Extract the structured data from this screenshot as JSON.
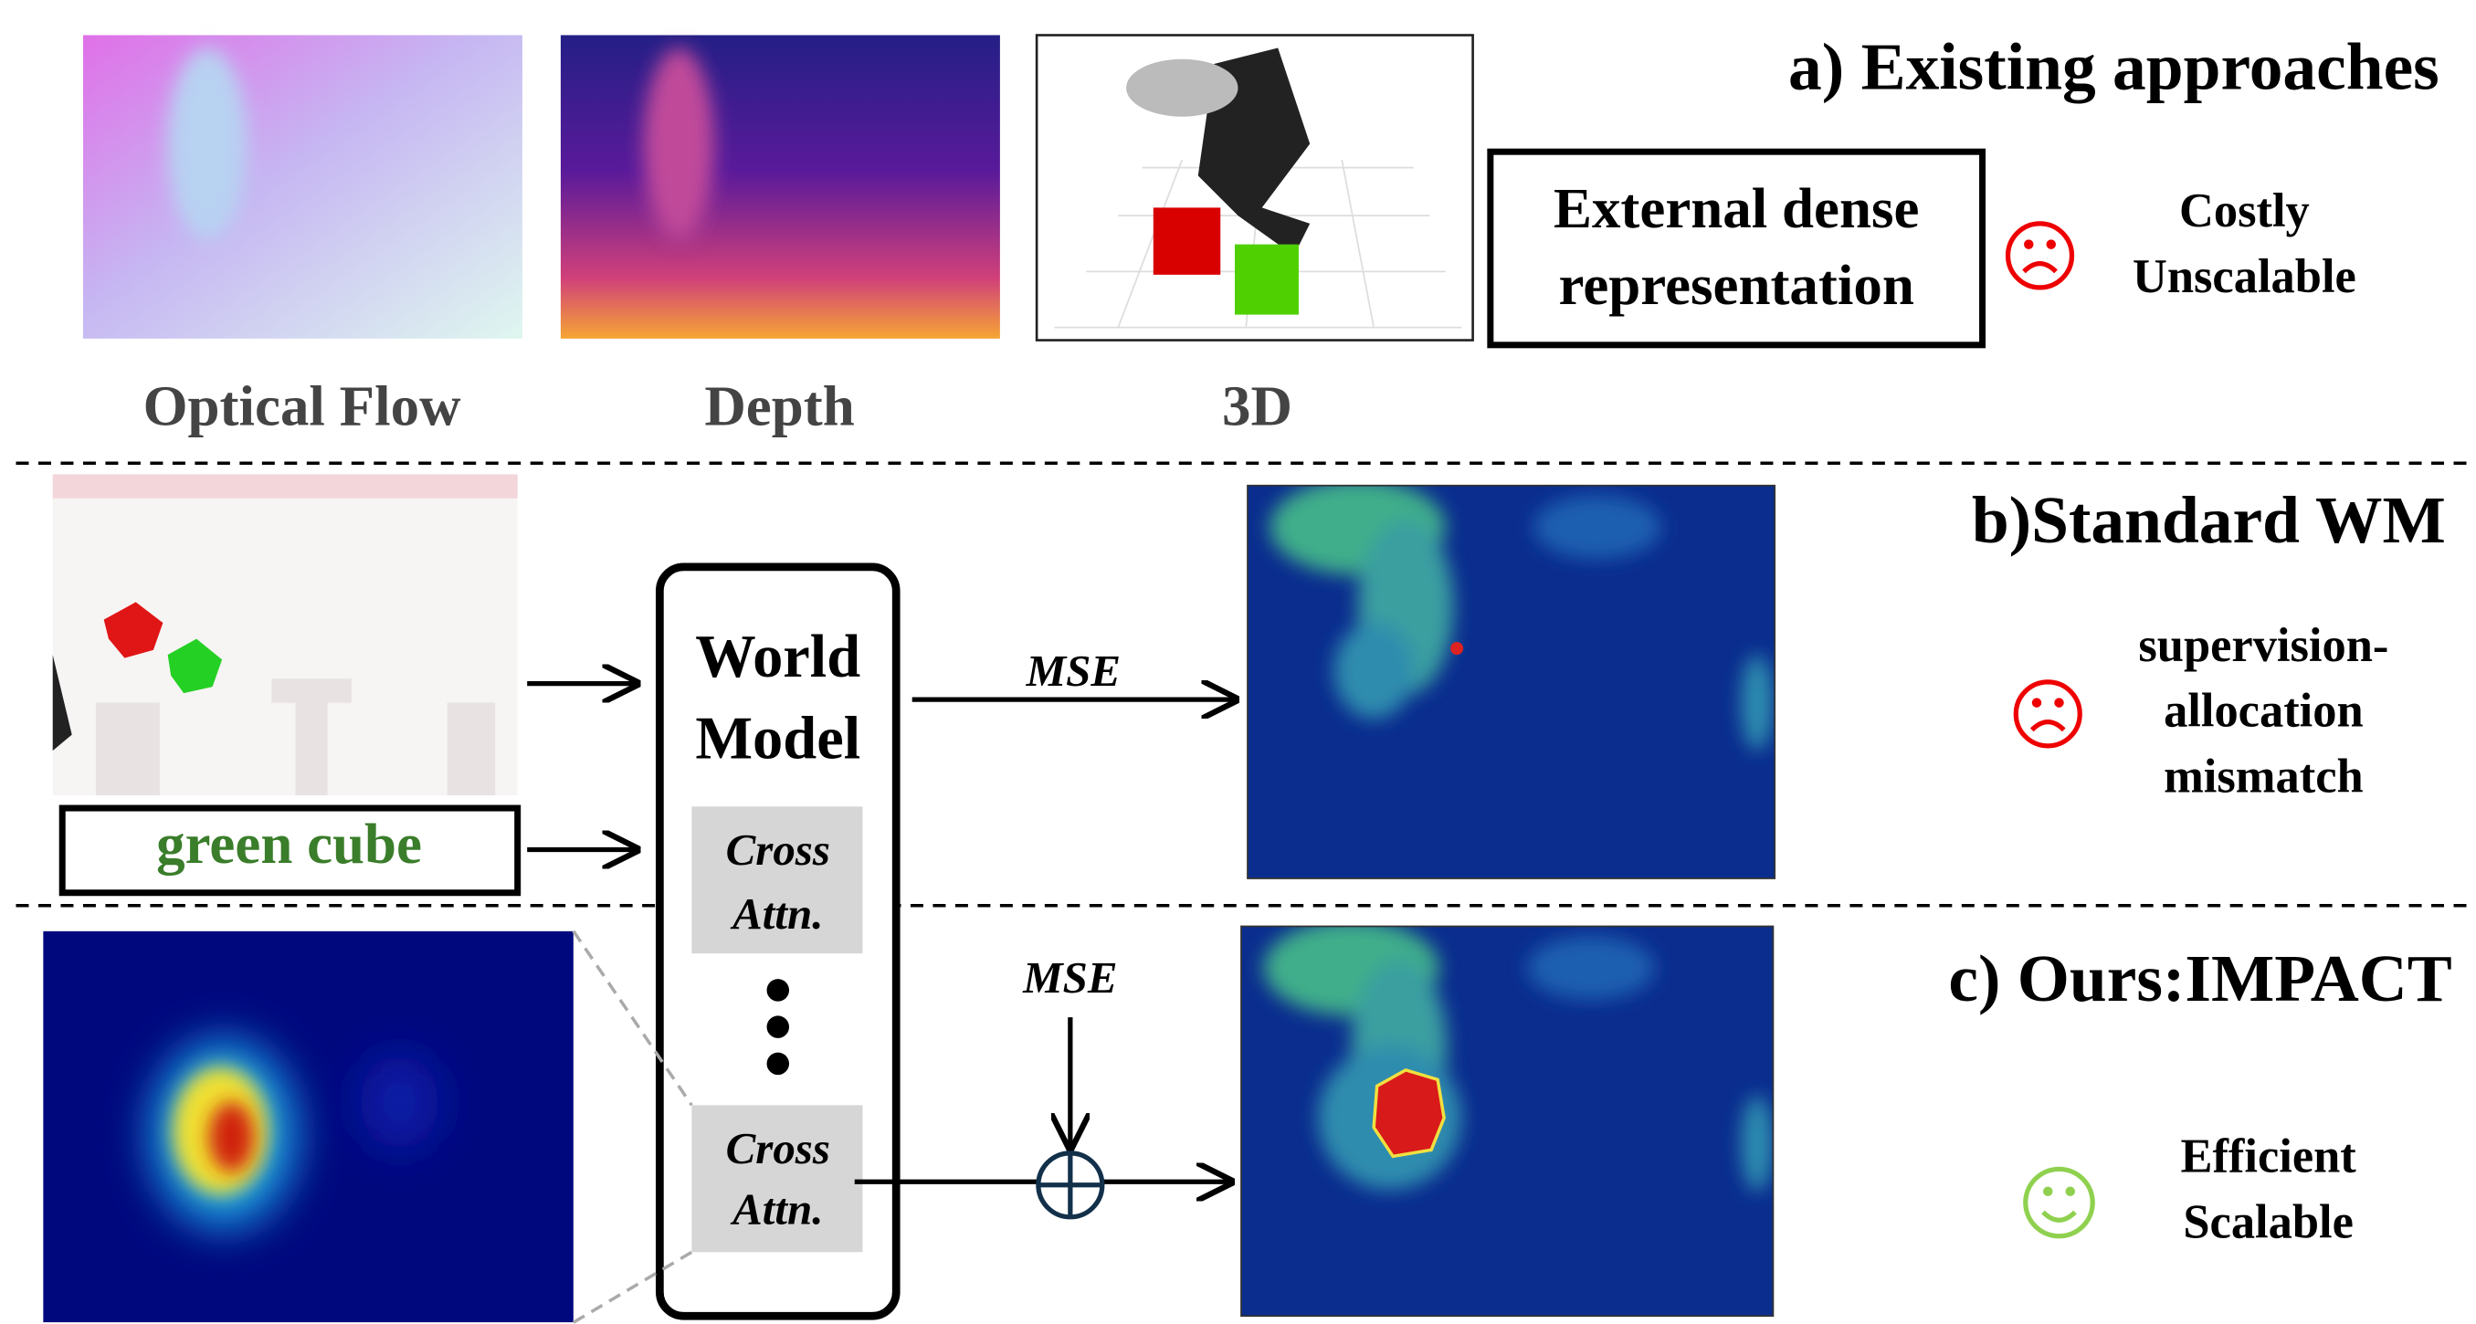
{
  "section_a": {
    "title": "a) Existing approaches",
    "thumbnails": [
      "Optical Flow",
      "Depth",
      "3D"
    ],
    "box_lines": [
      "External dense",
      "representation"
    ],
    "drawbacks": [
      "Costly",
      "Unscalable"
    ]
  },
  "section_b": {
    "title": "b)Standard WM",
    "text_prompt": "green cube",
    "loss": "MSE",
    "drawbacks": [
      "supervision-",
      "allocation",
      "mismatch"
    ]
  },
  "world_model": {
    "title_lines": [
      "World",
      "Model"
    ],
    "blocks": [
      [
        "Cross",
        "Attn."
      ],
      [
        "Cross",
        "Attn."
      ]
    ]
  },
  "section_c": {
    "title": "c) Ours:IMPACT",
    "loss": "MSE",
    "benefits": [
      "Efficient",
      "Scalable"
    ]
  }
}
